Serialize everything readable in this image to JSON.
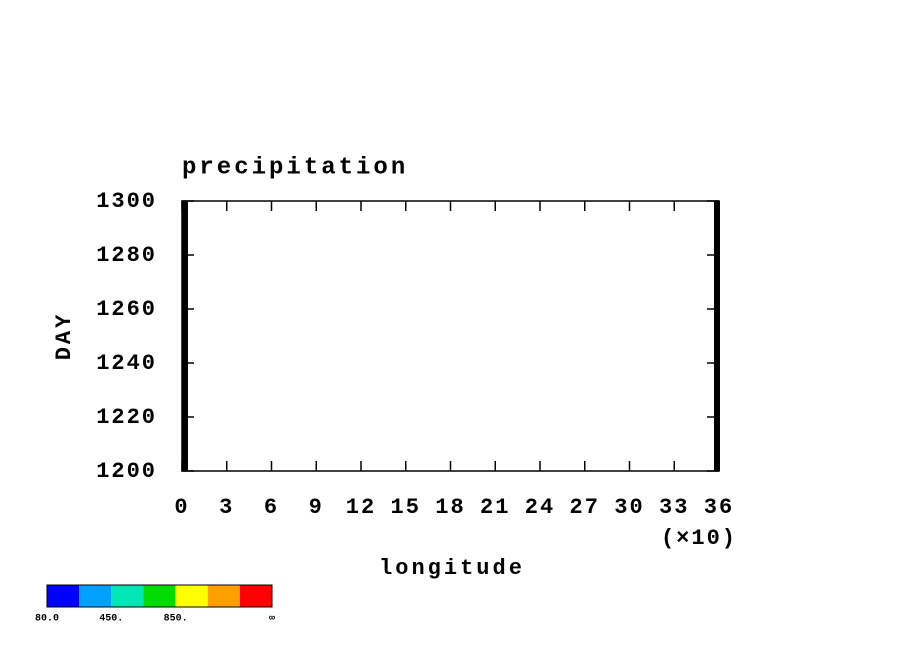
{
  "chart_data": {
    "type": "contour",
    "title": "precipitation",
    "xlabel": "longitude",
    "ylabel": "DAY",
    "xlim": [
      0,
      36
    ],
    "xticks": [
      0,
      3,
      6,
      9,
      12,
      15,
      18,
      21,
      24,
      27,
      30,
      33,
      36
    ],
    "x_scale_label": "(×10)",
    "ylim": [
      1200,
      1300
    ],
    "yticks": [
      1200,
      1220,
      1240,
      1260,
      1280,
      1300
    ],
    "colorbar": {
      "colors": [
        "#0000ff",
        "#00a0ff",
        "#00e6b4",
        "#00dc00",
        "#ffff00",
        "#ffa000",
        "#ff0000"
      ],
      "boundary_labels": [
        "80.0",
        null,
        "450.",
        null,
        "850.",
        null,
        null,
        "∞"
      ]
    }
  }
}
